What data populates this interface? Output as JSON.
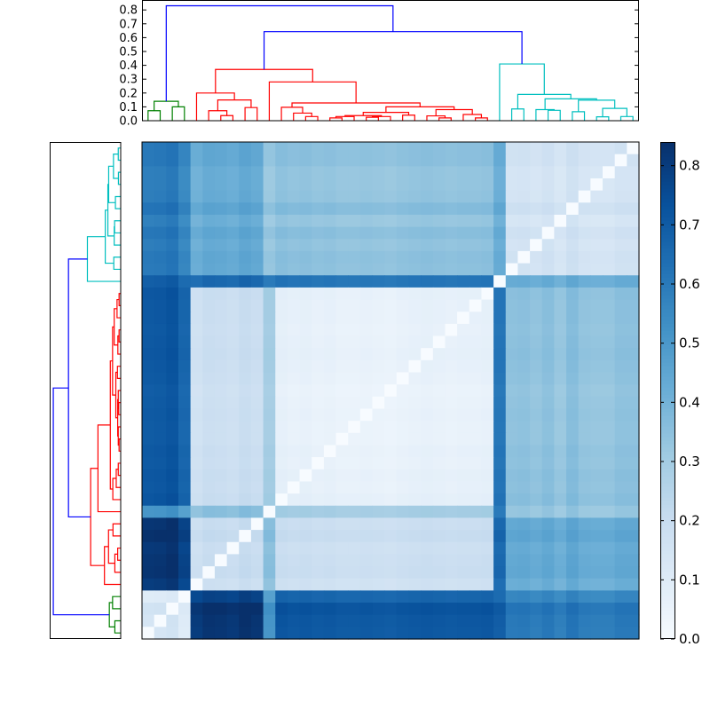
{
  "chart_data": {
    "type": "heatmap",
    "title": "",
    "n_leaves": 41,
    "vmin": 0.0,
    "vmax": 0.84,
    "colormap": "Blues",
    "colormap_stops": [
      "#f7fbff",
      "#deebf7",
      "#c6dbef",
      "#9ecae1",
      "#6baed6",
      "#4292c6",
      "#2171b5",
      "#08519c",
      "#08306b"
    ],
    "row_order": "reversed leaf order (top row = last leaf)",
    "column_order": "leaf order",
    "groups": [
      {
        "id": "G",
        "leaves": [
          0,
          3
        ]
      },
      {
        "id": "Ra",
        "leaves": [
          4,
          9
        ]
      },
      {
        "id": "R10",
        "leaves": [
          10,
          10
        ]
      },
      {
        "id": "Rb",
        "leaves": [
          11,
          28
        ]
      },
      {
        "id": "C29",
        "leaves": [
          29,
          29
        ]
      },
      {
        "id": "Cc",
        "leaves": [
          30,
          40
        ]
      }
    ],
    "group_distance": {
      "G|G": 0.12,
      "G|Ra": 0.8,
      "G|R10": 0.5,
      "G|Rb": 0.7,
      "G|C29": 0.68,
      "G|Cc": 0.58,
      "Ra|Ra": 0.18,
      "Ra|R10": 0.35,
      "Ra|Rb": 0.18,
      "Ra|C29": 0.65,
      "Ra|Cc": 0.42,
      "R10|R10": 0.0,
      "R10|Rb": 0.3,
      "R10|C29": 0.6,
      "R10|Cc": 0.32,
      "Rb|Rb": 0.07,
      "Rb|C29": 0.62,
      "Rb|Cc": 0.34,
      "C29|C29": 0.0,
      "C29|Cc": 0.42,
      "Cc|Cc": 0.14
    },
    "leaf_offset": [
      0.02,
      0.03,
      0.06,
      -0.06,
      -0.02,
      0.03,
      0.02,
      0.0,
      0.05,
      0.02,
      0.0,
      0.02,
      0.0,
      0.01,
      -0.01,
      0.0,
      -0.02,
      -0.02,
      -0.01,
      -0.02,
      -0.03,
      -0.01,
      0.0,
      0.01,
      0.0,
      -0.01,
      0.0,
      0.0,
      0.01,
      0.0,
      0.02,
      0.03,
      0.0,
      0.04,
      -0.02,
      0.06,
      0.0,
      -0.01,
      -0.01,
      0.03,
      0.03
    ],
    "dendrogram": {
      "ylim": [
        0.0,
        0.88
      ],
      "yticks": [
        "0.0",
        "0.1",
        "0.2",
        "0.3",
        "0.4",
        "0.5",
        "0.6",
        "0.7",
        "0.8"
      ],
      "above_threshold_color": "#0000ff",
      "color_threshold": 0.5,
      "clusters": [
        {
          "leaves": [
            0,
            3
          ],
          "color": "#008000"
        },
        {
          "leaves": [
            4,
            28
          ],
          "color": "#ff0000"
        },
        {
          "leaves": [
            29,
            40
          ],
          "color": "#00bfbf"
        }
      ],
      "tree": {
        "h": 0.83,
        "c": [
          {
            "h": 0.14,
            "c": [
              {
                "h": 0.072,
                "c": [
                  0,
                  1
                ]
              },
              {
                "h": 0.1,
                "c": [
                  2,
                  3
                ]
              }
            ]
          },
          {
            "h": 0.643,
            "c": [
              {
                "h": 0.37,
                "c": [
                  {
                    "h": 0.2,
                    "c": [
                      4,
                      {
                        "h": 0.15,
                        "c": [
                          {
                            "h": 0.072,
                            "c": [
                              5,
                              {
                                "h": 0.037,
                                "c": [
                                  6,
                                  7
                                ]
                              }
                            ]
                          },
                          {
                            "h": 0.095,
                            "c": [
                              8,
                              9
                            ]
                          }
                        ]
                      }
                    ]
                  },
                  {
                    "h": 0.28,
                    "c": [
                      10,
                      {
                        "h": 0.128,
                        "c": [
                          {
                            "h": 0.097,
                            "c": [
                              11,
                              {
                                "h": 0.055,
                                "c": [
                                  12,
                                  {
                                    "h": 0.03,
                                    "c": [
                                      13,
                                      14
                                    ]
                                  }
                                ]
                              }
                            ]
                          },
                          {
                            "h": 0.1,
                            "c": [
                              {
                                "h": 0.06,
                                "c": [
                                  {
                                    "h": 0.037,
                                    "c": [
                                      {
                                        "h": 0.03,
                                        "c": [
                                          {
                                            "h": 0.02,
                                            "c": [
                                              15,
                                              16
                                            ]
                                          },
                                          17
                                        ]
                                      },
                                      {
                                        "h": 0.03,
                                        "c": [
                                          {
                                            "h": 0.025,
                                            "c": [
                                              18,
                                              19
                                            ]
                                          },
                                          20
                                        ]
                                      }
                                    ]
                                  },
                                  {
                                    "h": 0.04,
                                    "c": [
                                      21,
                                      22
                                    ]
                                  }
                                ]
                              },
                              {
                                "h": 0.08,
                                "c": [
                                  {
                                    "h": 0.035,
                                    "c": [
                                      23,
                                      {
                                        "h": 0.02,
                                        "c": [
                                          24,
                                          25
                                        ]
                                      }
                                    ]
                                  },
                                  {
                                    "h": 0.045,
                                    "c": [
                                      26,
                                      {
                                        "h": 0.02,
                                        "c": [
                                          27,
                                          28
                                        ]
                                      }
                                    ]
                                  }
                                ]
                              }
                            ]
                          }
                        ]
                      }
                    ]
                  }
                ]
              },
              {
                "h": 0.41,
                "c": [
                  29,
                  {
                    "h": 0.19,
                    "c": [
                      {
                        "h": 0.085,
                        "c": [
                          30,
                          31
                        ]
                      },
                      {
                        "h": 0.158,
                        "c": [
                          {
                            "h": 0.08,
                            "c": [
                              32,
                              {
                                "h": 0.075,
                                "c": [
                                  33,
                                  34
                                ]
                              }
                            ]
                          },
                          {
                            "h": 0.148,
                            "c": [
                              {
                                "h": 0.065,
                                "c": [
                                  35,
                                  36
                                ]
                              },
                              {
                                "h": 0.089,
                                "c": [
                                  {
                                    "h": 0.028,
                                    "c": [
                                      37,
                                      38
                                    ]
                                  },
                                  {
                                    "h": 0.03,
                                    "c": [
                                      39,
                                      40
                                    ]
                                  }
                                ]
                              }
                            ]
                          }
                        ]
                      }
                    ]
                  }
                ]
              }
            ]
          }
        ]
      }
    },
    "colorbar": {
      "ticks": [
        "0.0",
        "0.1",
        "0.2",
        "0.3",
        "0.4",
        "0.5",
        "0.6",
        "0.7",
        "0.8"
      ],
      "range": [
        0.0,
        0.84
      ]
    }
  }
}
